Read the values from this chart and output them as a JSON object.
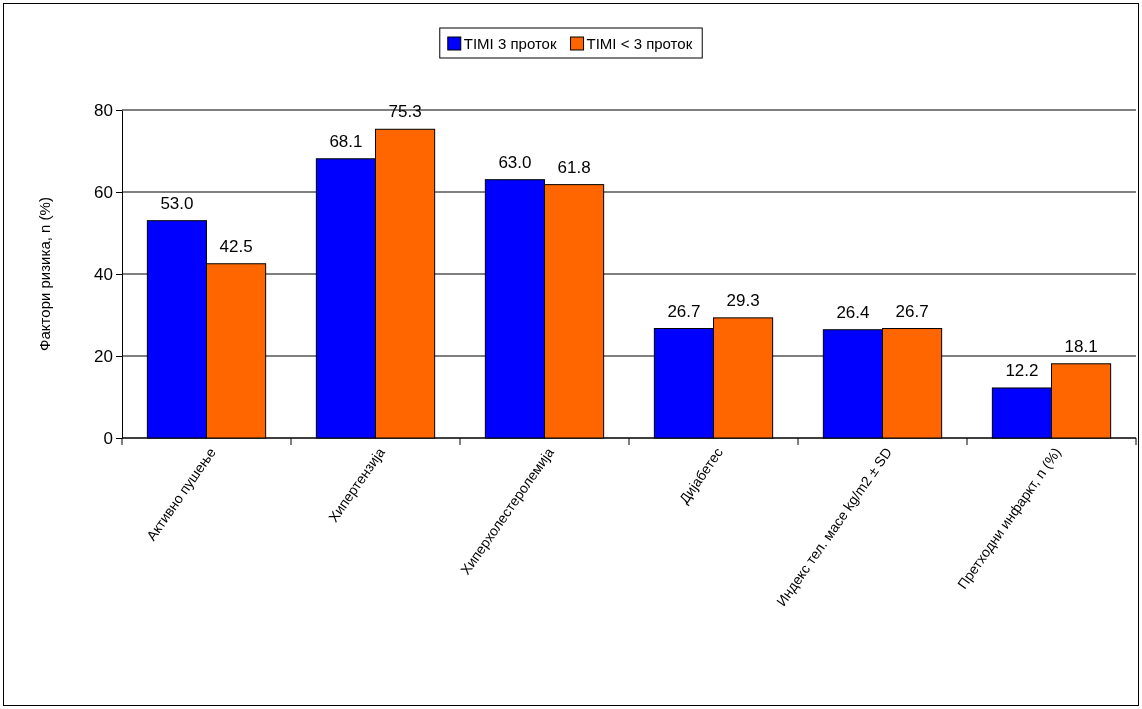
{
  "chart_data": {
    "type": "bar",
    "ylabel": "Фактори ризика, n (%)",
    "categories": [
      "Активно пушење",
      "Хипертензија",
      "Хиперхолестеролемија",
      "Дијабетес",
      "Индекс тел. масе kg/m2 ± SD",
      "Претходни инфаркт, n (%)"
    ],
    "series": [
      {
        "name": "TIMI 3 проток",
        "color": "#0000ff",
        "values": [
          53.0,
          68.1,
          63.0,
          26.7,
          26.4,
          12.2
        ],
        "value_labels": [
          "53.0",
          "68.1",
          "63.0",
          "26.7",
          "26.4",
          "12.2"
        ]
      },
      {
        "name": "TIMI < 3 проток",
        "color": "#ff6600",
        "values": [
          42.5,
          75.3,
          61.8,
          29.3,
          26.7,
          18.1
        ],
        "value_labels": [
          "42.5",
          "75.3",
          "61.8",
          "29.3",
          "26.7",
          "18.1"
        ]
      }
    ],
    "ylim": [
      0,
      80
    ],
    "yticks": [
      0,
      20,
      40,
      60,
      80
    ],
    "grid": "y",
    "legend": "top"
  }
}
